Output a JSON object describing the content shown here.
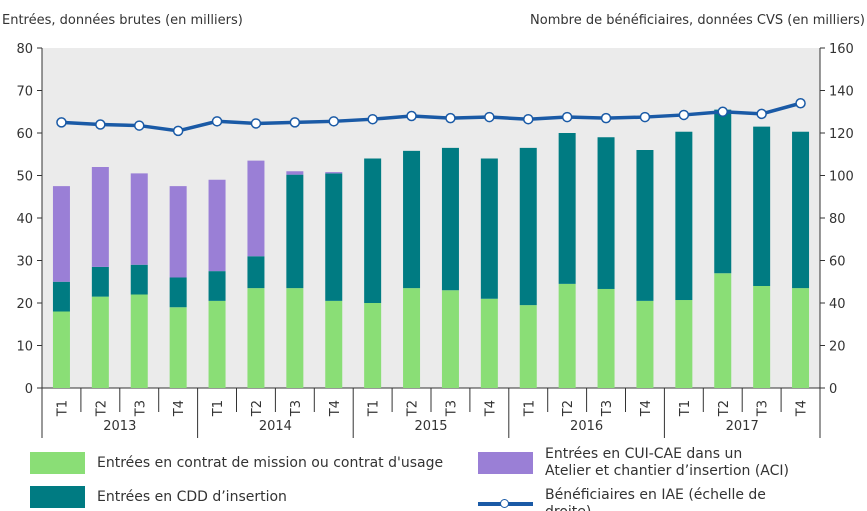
{
  "chart_data": {
    "type": "bar",
    "title_left": "Entrées, données brutes (en milliers)",
    "title_right": "Nombre de bénéficiaires, données CVS (en milliers)",
    "categories": [
      "T1",
      "T2",
      "T3",
      "T4",
      "T1",
      "T2",
      "T3",
      "T4",
      "T1",
      "T2",
      "T3",
      "T4",
      "T1",
      "T2",
      "T3",
      "T4",
      "T1",
      "T2",
      "T3",
      "T4"
    ],
    "category_groups": [
      "2013",
      "2014",
      "2015",
      "2016",
      "2017"
    ],
    "stacked": true,
    "series": [
      {
        "name": "Entrées en contrat de mission ou contrat d'usage",
        "color": "#8ade76",
        "values": [
          18,
          21.5,
          22,
          19,
          20.5,
          23.5,
          23.5,
          20.5,
          20,
          23.5,
          23,
          21,
          19.5,
          24.5,
          23.3,
          20.5,
          20.7,
          27,
          24,
          23.5
        ]
      },
      {
        "name": "Entrées en CDD d’insertion",
        "color": "#007b82",
        "values": [
          7,
          7,
          7,
          7,
          7,
          7.5,
          26.7,
          30,
          34,
          32.3,
          33.5,
          33,
          37,
          35.5,
          35.7,
          35.5,
          39.6,
          38.5,
          37.5,
          36.8
        ]
      },
      {
        "name": "Entrées en CUI-CAE dans un Atelier et chantier d’insertion (ACI)",
        "color": "#9a7fd6",
        "values": [
          22.5,
          23.5,
          21.5,
          21.5,
          21.5,
          22.5,
          0.8,
          0.3,
          0,
          0,
          0,
          0,
          0,
          0,
          0,
          0,
          0,
          0,
          0,
          0
        ]
      },
      {
        "name": "Bénéficiaires en IAE (échelle de droite)",
        "color": "#1a5aa6",
        "type": "line",
        "axis": "y2",
        "values": [
          125,
          124,
          123.5,
          121,
          125.5,
          124.5,
          125,
          125.5,
          126.5,
          128,
          127,
          127.5,
          126.5,
          127.5,
          127,
          127.5,
          128.5,
          130,
          129,
          134
        ]
      }
    ],
    "ylim": [
      0,
      80
    ],
    "yticks": [
      0,
      10,
      20,
      30,
      40,
      50,
      60,
      70,
      80
    ],
    "y2lim": [
      0,
      160
    ],
    "y2ticks": [
      0,
      20,
      40,
      60,
      80,
      100,
      120,
      140,
      160
    ],
    "grid": false
  }
}
